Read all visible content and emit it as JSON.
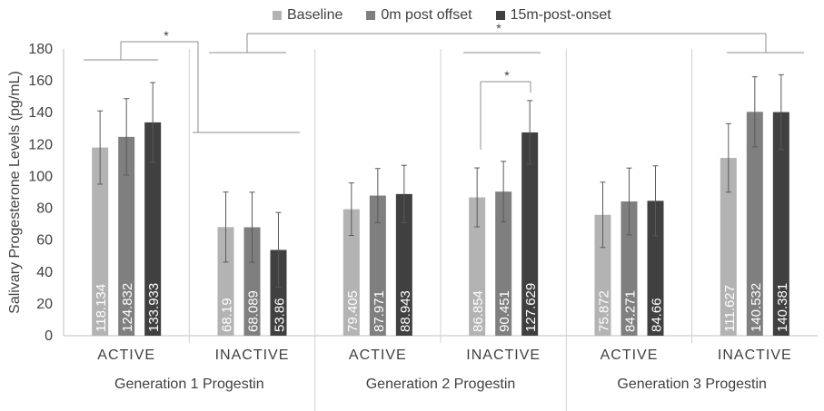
{
  "chart_data": {
    "type": "bar",
    "ylabel": "Salivary Progesterone Levels (pg/mL)",
    "ylim": [
      0,
      180
    ],
    "yticks": [
      0,
      20,
      40,
      60,
      80,
      100,
      120,
      140,
      160,
      180
    ],
    "legend_position": "top",
    "series": [
      {
        "name": "Baseline",
        "color": "#b3b3b3"
      },
      {
        "name": "0m post offset",
        "color": "#7f7f7f"
      },
      {
        "name": "15m-post-onset",
        "color": "#404040"
      }
    ],
    "groups": [
      {
        "label": "Generation 1 Progestin",
        "subgroups": [
          {
            "label": "ACTIVE",
            "values": [
              118.134,
              124.832,
              133.933
            ],
            "value_labels": [
              "118.134",
              "124.832",
              "133.933"
            ],
            "errors": [
              23,
              24,
              25
            ]
          },
          {
            "label": "INACTIVE",
            "values": [
              68.19,
              68.089,
              53.86
            ],
            "value_labels": [
              "68.19",
              "68.089",
              "53.86"
            ],
            "errors": [
              22,
              22,
              23.5
            ]
          }
        ]
      },
      {
        "label": "Generation 2 Progestin",
        "subgroups": [
          {
            "label": "ACTIVE",
            "values": [
              79.405,
              87.971,
              88.943
            ],
            "value_labels": [
              "79.405",
              "87.971",
              "88.943"
            ],
            "errors": [
              16.5,
              17,
              18
            ]
          },
          {
            "label": "INACTIVE",
            "values": [
              86.854,
              90.451,
              127.629
            ],
            "value_labels": [
              "86.854",
              "90.451",
              "127.629"
            ],
            "errors": [
              18.5,
              19,
              20
            ]
          }
        ]
      },
      {
        "label": "Generation 3 Progestin",
        "subgroups": [
          {
            "label": "ACTIVE",
            "values": [
              75.872,
              84.271,
              84.66
            ],
            "value_labels": [
              "75.872",
              "84.271",
              "84.66"
            ],
            "errors": [
              20.5,
              21,
              22
            ]
          },
          {
            "label": "INACTIVE",
            "values": [
              111.627,
              140.532,
              140.381
            ],
            "value_labels": [
              "111.627",
              "140.532",
              "140.381"
            ],
            "errors": [
              21.5,
              22,
              23.5
            ]
          }
        ]
      }
    ],
    "annotations": [
      {
        "text": "*",
        "between": "Generation 1 ACTIVE vs INACTIVE"
      },
      {
        "text": "*",
        "between": "Generation 1 vs Generation 3"
      },
      {
        "text": "*",
        "between": "Generation 2 INACTIVE Baseline vs 15m-post-onset"
      }
    ]
  }
}
